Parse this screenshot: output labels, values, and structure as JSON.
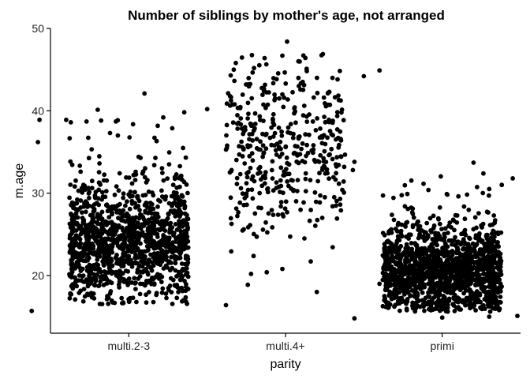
{
  "chart_data": {
    "type": "scatter",
    "jitter": true,
    "title": "Number of siblings by mother's age, not arranged",
    "xlabel": "parity",
    "ylabel": "m.age",
    "categories": [
      "multi.2-3",
      "multi.4+",
      "primi"
    ],
    "ylim": [
      13,
      50
    ],
    "yticks": [
      20,
      30,
      40,
      50
    ],
    "ytick_labels": [
      "20",
      "30",
      "40",
      "50"
    ],
    "grid": false,
    "legend": "none",
    "point_color": "#000000",
    "groups": [
      {
        "category": "multi.2-3",
        "n_points": 1300,
        "median": 24,
        "bulk_range": [
          19,
          30
        ],
        "min": 15.7,
        "max": 42.1,
        "notable_points": [
          {
            "y": 42.1,
            "offset": 0.1
          },
          {
            "y": 40.2,
            "offset": 0.5
          },
          {
            "y": 39.2,
            "offset": 0.22
          },
          {
            "y": 38.9,
            "offset": -0.57
          },
          {
            "y": 38.9,
            "offset": -0.4
          },
          {
            "y": 38.7,
            "offset": -0.27
          },
          {
            "y": 38.6,
            "offset": -0.37
          },
          {
            "y": 37.3,
            "offset": -0.12
          },
          {
            "y": 37.0,
            "offset": -0.07
          },
          {
            "y": 36.2,
            "offset": -0.58
          },
          {
            "y": 15.7,
            "offset": -0.62
          },
          {
            "y": 16.4,
            "offset": 0.62
          }
        ]
      },
      {
        "category": "multi.4+",
        "n_points": 420,
        "median": 35,
        "bulk_range": [
          25,
          42
        ],
        "min": 18.0,
        "max": 48.4,
        "notable_points": [
          {
            "y": 48.4,
            "offset": 0.01
          },
          {
            "y": 45.0,
            "offset": -0.33
          },
          {
            "y": 44.9,
            "offset": 0.6
          },
          {
            "y": 44.3,
            "offset": -0.35
          },
          {
            "y": 44.2,
            "offset": 0.5
          },
          {
            "y": 44.0,
            "offset": 0.3
          },
          {
            "y": 20.8,
            "offset": -0.02
          },
          {
            "y": 20.4,
            "offset": -0.12
          },
          {
            "y": 20.2,
            "offset": -0.22
          },
          {
            "y": 19.0,
            "offset": 0.6
          },
          {
            "y": 18.0,
            "offset": 0.2
          }
        ]
      },
      {
        "category": "primi",
        "n_points": 1500,
        "median": 20.5,
        "bulk_range": [
          17,
          25
        ],
        "min": 14.8,
        "max": 34.0,
        "notable_points": [
          {
            "y": 34.0,
            "offset": 0.65
          },
          {
            "y": 33.8,
            "offset": -0.56
          },
          {
            "y": 33.7,
            "offset": 0.2
          },
          {
            "y": 32.8,
            "offset": -0.57
          },
          {
            "y": 31.8,
            "offset": 0.45
          },
          {
            "y": 31.0,
            "offset": 0.38
          },
          {
            "y": 30.5,
            "offset": 0.3
          },
          {
            "y": 14.8,
            "offset": -0.56
          },
          {
            "y": 14.9,
            "offset": 0.0
          },
          {
            "y": 15.0,
            "offset": 0.3
          },
          {
            "y": 15.1,
            "offset": 0.48
          }
        ]
      }
    ]
  }
}
